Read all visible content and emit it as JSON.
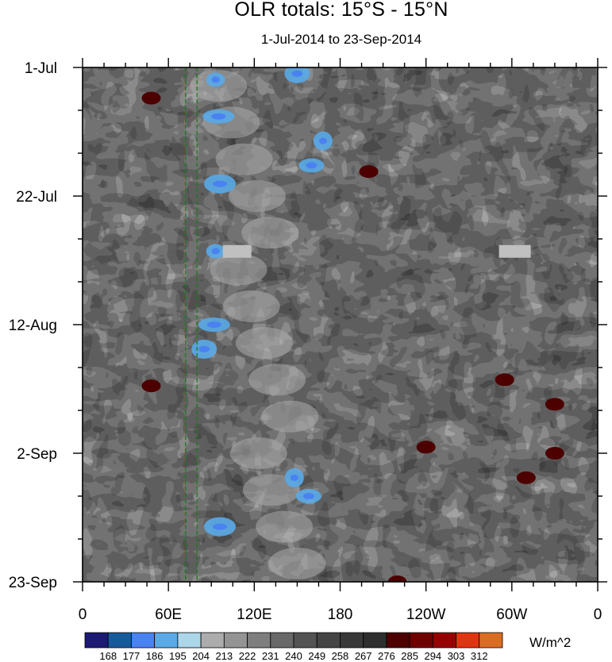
{
  "chart_data": {
    "type": "heatmap",
    "title": "OLR totals: 15°S - 15°N",
    "subtitle": "1-Jul-2014 to 23-Sep-2014",
    "x_ticks": [
      {
        "lon": 0,
        "label": "0"
      },
      {
        "lon": 60,
        "label": "60E"
      },
      {
        "lon": 120,
        "label": "120E"
      },
      {
        "lon": 180,
        "label": "180"
      },
      {
        "lon": 240,
        "label": "120W"
      },
      {
        "lon": 300,
        "label": "60W"
      },
      {
        "lon": 360,
        "label": "0"
      }
    ],
    "x_range": [
      0,
      360
    ],
    "y_ticks": [
      {
        "day": 0,
        "label": "1-Jul"
      },
      {
        "day": 21,
        "label": "22-Jul"
      },
      {
        "day": 42,
        "label": "12-Aug"
      },
      {
        "day": 63,
        "label": "2-Sep"
      },
      {
        "day": 84,
        "label": "23-Sep"
      }
    ],
    "y_range": [
      0,
      84
    ],
    "y_reversed": true,
    "colorbar": {
      "labels": [
        "168",
        "177",
        "186",
        "195",
        "204",
        "213",
        "222",
        "231",
        "240",
        "249",
        "258",
        "267",
        "276",
        "285",
        "294",
        "303",
        "312"
      ],
      "colors": [
        "#1c1a74",
        "#175a9a",
        "#4a82f2",
        "#5aaae8",
        "#acd6ea",
        "#acacac",
        "#949494",
        "#7e7e7e",
        "#686868",
        "#535353",
        "#444444",
        "#383838",
        "#2e2e2e",
        "#4c0000",
        "#6e0000",
        "#960000",
        "#e03510",
        "#da6d24"
      ],
      "units": "W/m^2"
    },
    "reference_lines_lon": [
      72,
      80
    ],
    "reference_line_color": "#1a7a1a"
  }
}
